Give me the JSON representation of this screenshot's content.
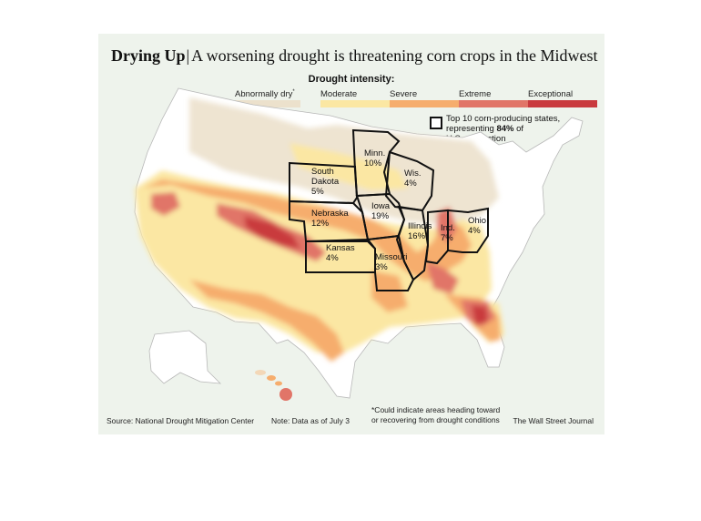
{
  "title": {
    "bold": "Drying Up",
    "separator": "|",
    "rest": "A worsening drought is threatening corn crops in the Midwest"
  },
  "legend": {
    "title": "Drought intensity:",
    "abnormally_dry": "Abnormally dry",
    "abnormally_dry_mark": "*",
    "levels": [
      "Moderate",
      "Severe",
      "Extreme",
      "Exceptional"
    ],
    "colors": {
      "abnormally_dry": "#ece1cc",
      "moderate": "#fbe7a3",
      "severe": "#f6ad6d",
      "extreme": "#e17568",
      "exceptional": "#c93a3e"
    }
  },
  "top10": {
    "line1": "Top 10 corn-producing states,",
    "line2_prefix": "representing ",
    "line2_bold": "84%",
    "line2_suffix": " of",
    "line3": "U.S. production"
  },
  "states": [
    {
      "name": "Minn.",
      "pct": "10%"
    },
    {
      "name": "South",
      "name2": "Dakota",
      "pct": "5%"
    },
    {
      "name": "Wis.",
      "pct": "4%"
    },
    {
      "name": "Nebraska",
      "pct": "12%"
    },
    {
      "name": "Iowa",
      "pct": "19%"
    },
    {
      "name": "Illinois",
      "pct": "16%"
    },
    {
      "name": "Ind.",
      "pct": "7%"
    },
    {
      "name": "Ohio",
      "pct": "4%"
    },
    {
      "name": "Kansas",
      "pct": "4%"
    },
    {
      "name": "Missouri",
      "pct": "3%"
    }
  ],
  "footer": {
    "source": "Source: National Drought Mitigation Center",
    "note": "Note: Data as of July 3",
    "footnote_line1": "*Could indicate areas heading toward",
    "footnote_line2": "or recovering from drought conditions",
    "credit": "The Wall Street Journal"
  }
}
